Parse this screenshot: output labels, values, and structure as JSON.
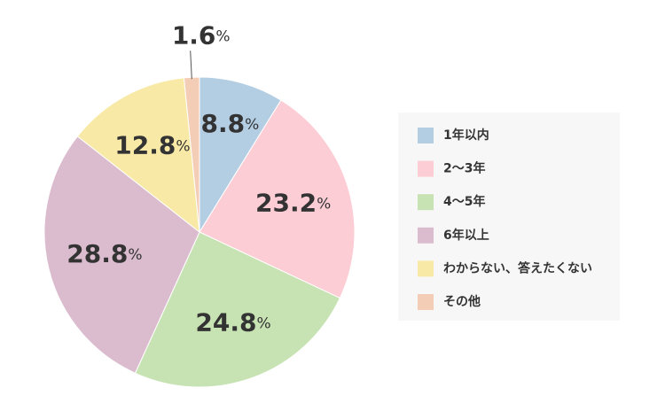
{
  "chart_data": {
    "type": "pie",
    "categories": [
      "1年以内",
      "2〜3年",
      "4〜5年",
      "6年以上",
      "わからない、答えたくない",
      "その他"
    ],
    "values": [
      8.8,
      23.2,
      24.8,
      28.8,
      12.8,
      1.6
    ],
    "value_labels": [
      "8.8%",
      "23.2%",
      "24.8%",
      "28.8%",
      "12.8%",
      "1.6%"
    ],
    "colors": [
      "#b3cde3",
      "#fdcdd6",
      "#c8e3b3",
      "#dbbccf",
      "#f8eaa6",
      "#f4cdb7"
    ],
    "legend": "right"
  }
}
